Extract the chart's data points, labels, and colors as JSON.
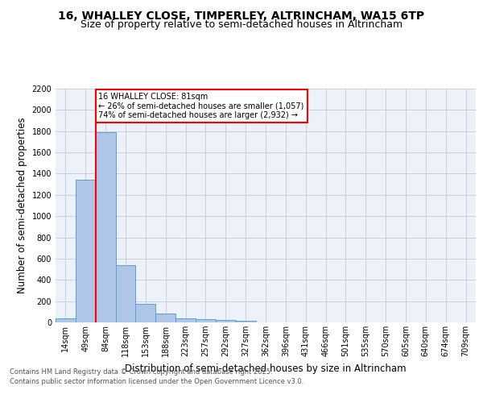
{
  "title_line1": "16, WHALLEY CLOSE, TIMPERLEY, ALTRINCHAM, WA15 6TP",
  "title_line2": "Size of property relative to semi-detached houses in Altrincham",
  "xlabel": "Distribution of semi-detached houses by size in Altrincham",
  "ylabel": "Number of semi-detached properties",
  "categories": [
    "14sqm",
    "49sqm",
    "84sqm",
    "118sqm",
    "153sqm",
    "188sqm",
    "223sqm",
    "257sqm",
    "292sqm",
    "327sqm",
    "362sqm",
    "396sqm",
    "431sqm",
    "466sqm",
    "501sqm",
    "535sqm",
    "570sqm",
    "605sqm",
    "640sqm",
    "674sqm",
    "709sqm"
  ],
  "values": [
    35,
    1345,
    1790,
    535,
    178,
    80,
    35,
    30,
    25,
    15,
    0,
    0,
    0,
    0,
    0,
    0,
    0,
    0,
    0,
    0,
    0
  ],
  "bar_color": "#aec6e8",
  "bar_edge_color": "#5a9fd4",
  "red_line_index": 2,
  "annotation_text": "16 WHALLEY CLOSE: 81sqm\n← 26% of semi-detached houses are smaller (1,057)\n74% of semi-detached houses are larger (2,932) →",
  "annotation_box_color": "white",
  "annotation_box_edge_color": "red",
  "ylim": [
    0,
    2200
  ],
  "yticks": [
    0,
    200,
    400,
    600,
    800,
    1000,
    1200,
    1400,
    1600,
    1800,
    2000,
    2200
  ],
  "grid_color": "#c8d0dc",
  "bg_color": "#edf2fa",
  "footer_line1": "Contains HM Land Registry data © Crown copyright and database right 2025.",
  "footer_line2": "Contains public sector information licensed under the Open Government Licence v3.0.",
  "title_fontsize": 10,
  "subtitle_fontsize": 9,
  "tick_fontsize": 7,
  "label_fontsize": 8.5,
  "annotation_fontsize": 7,
  "footer_fontsize": 6
}
